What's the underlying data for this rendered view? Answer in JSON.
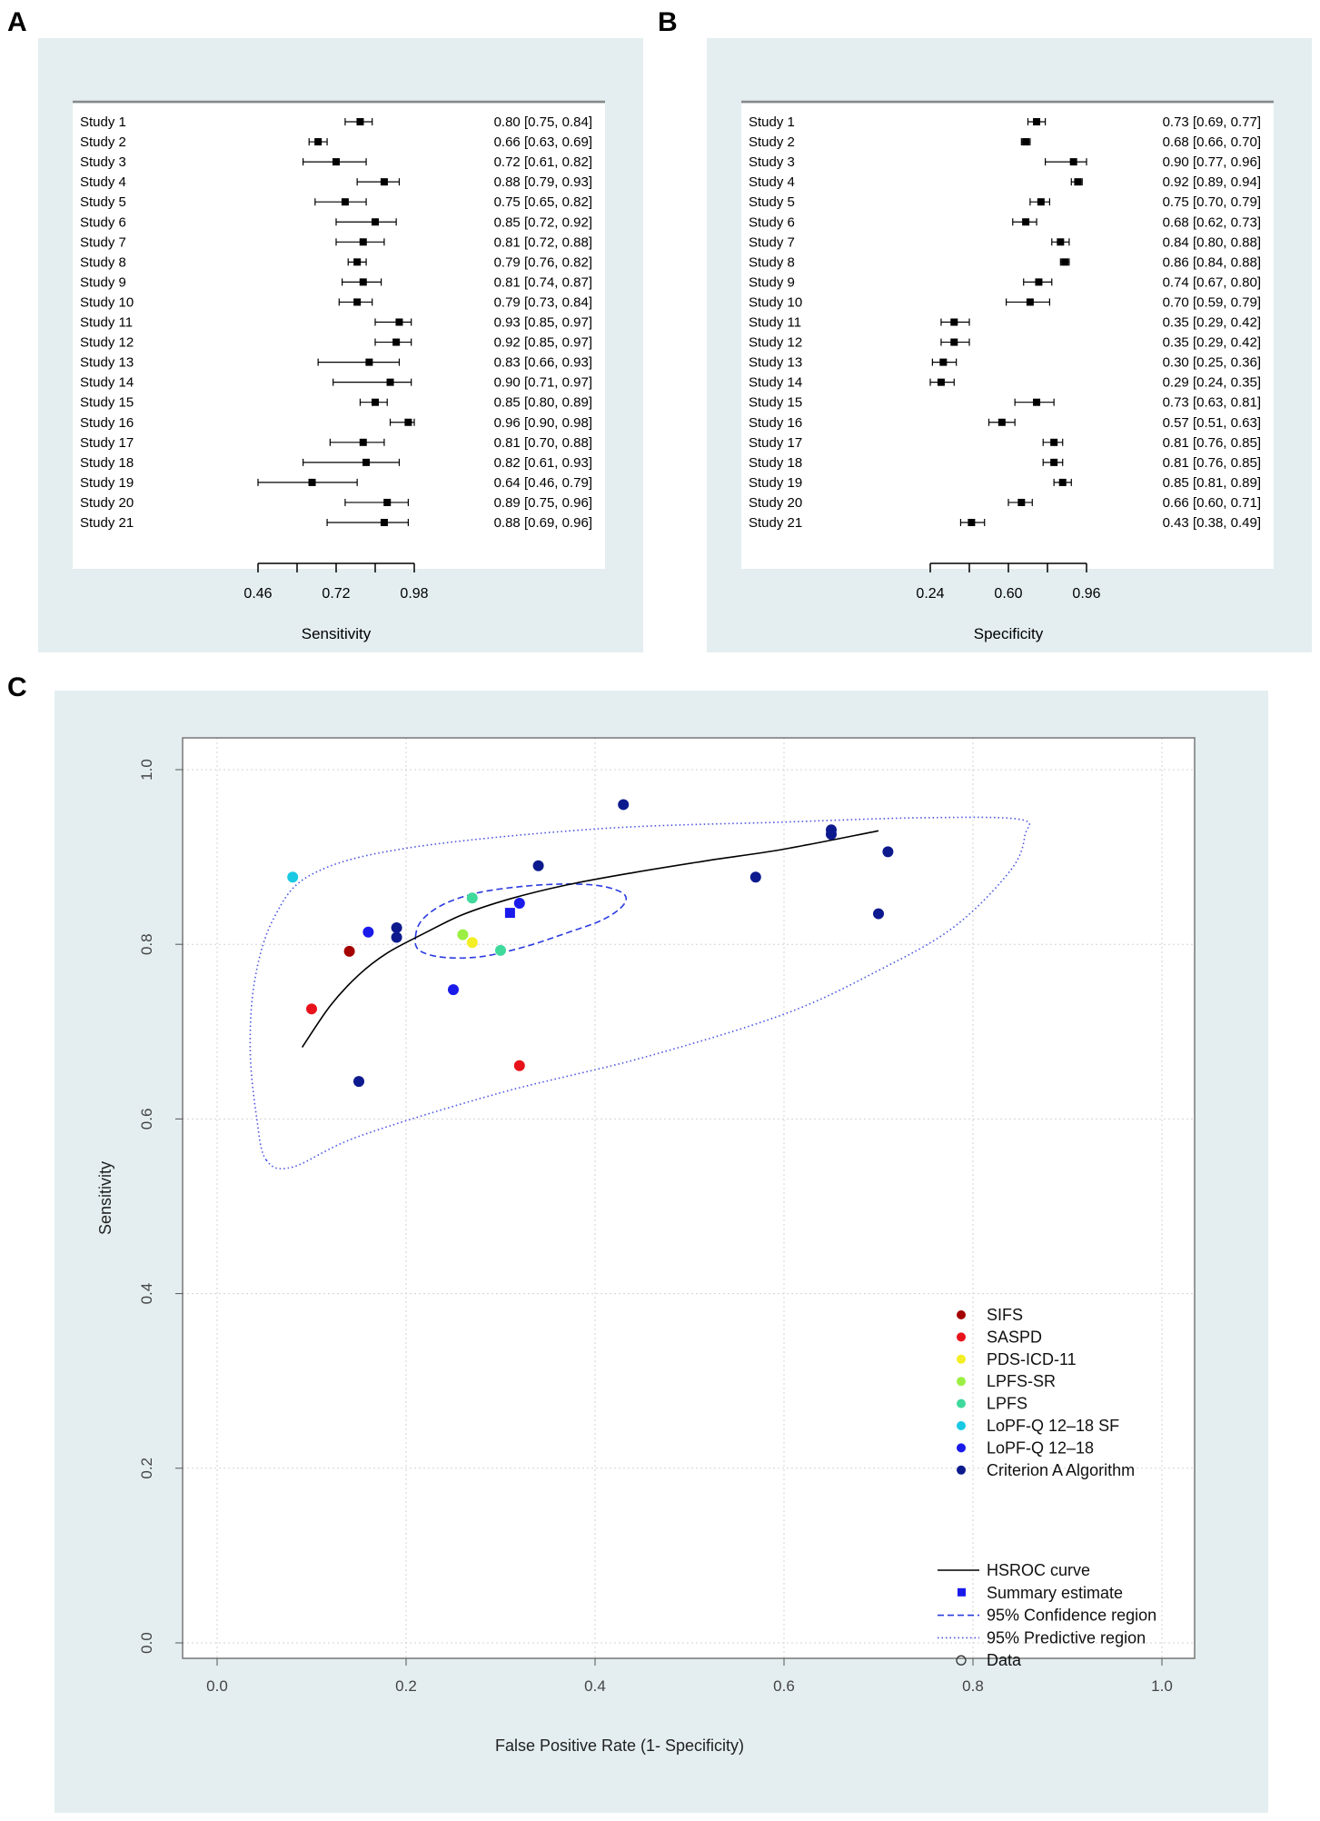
{
  "panels": {
    "a_label": "A",
    "b_label": "B",
    "c_label": "C"
  },
  "chart_data": [
    {
      "type": "forest",
      "xlabel": "Sensitivity",
      "ticks": [
        0.46,
        0.72,
        0.98
      ],
      "minor_ticks": [
        0.46,
        0.59,
        0.72,
        0.85,
        0.98
      ],
      "xlim": [
        0.46,
        0.98
      ],
      "studies": [
        {
          "label": "Study 1",
          "est": 0.8,
          "lo": 0.75,
          "hi": 0.84,
          "text": "0.80 [0.75, 0.84]"
        },
        {
          "label": "Study 2",
          "est": 0.66,
          "lo": 0.63,
          "hi": 0.69,
          "text": "0.66 [0.63, 0.69]"
        },
        {
          "label": "Study 3",
          "est": 0.72,
          "lo": 0.61,
          "hi": 0.82,
          "text": "0.72 [0.61, 0.82]"
        },
        {
          "label": "Study 4",
          "est": 0.88,
          "lo": 0.79,
          "hi": 0.93,
          "text": "0.88 [0.79, 0.93]"
        },
        {
          "label": "Study 5",
          "est": 0.75,
          "lo": 0.65,
          "hi": 0.82,
          "text": "0.75 [0.65, 0.82]"
        },
        {
          "label": "Study 6",
          "est": 0.85,
          "lo": 0.72,
          "hi": 0.92,
          "text": "0.85 [0.72, 0.92]"
        },
        {
          "label": "Study 7",
          "est": 0.81,
          "lo": 0.72,
          "hi": 0.88,
          "text": "0.81 [0.72, 0.88]"
        },
        {
          "label": "Study 8",
          "est": 0.79,
          "lo": 0.76,
          "hi": 0.82,
          "text": "0.79 [0.76, 0.82]"
        },
        {
          "label": "Study 9",
          "est": 0.81,
          "lo": 0.74,
          "hi": 0.87,
          "text": "0.81 [0.74, 0.87]"
        },
        {
          "label": "Study 10",
          "est": 0.79,
          "lo": 0.73,
          "hi": 0.84,
          "text": "0.79 [0.73, 0.84]"
        },
        {
          "label": "Study 11",
          "est": 0.93,
          "lo": 0.85,
          "hi": 0.97,
          "text": "0.93 [0.85, 0.97]"
        },
        {
          "label": "Study 12",
          "est": 0.92,
          "lo": 0.85,
          "hi": 0.97,
          "text": "0.92 [0.85, 0.97]"
        },
        {
          "label": "Study 13",
          "est": 0.83,
          "lo": 0.66,
          "hi": 0.93,
          "text": "0.83 [0.66, 0.93]"
        },
        {
          "label": "Study 14",
          "est": 0.9,
          "lo": 0.71,
          "hi": 0.97,
          "text": "0.90 [0.71, 0.97]"
        },
        {
          "label": "Study 15",
          "est": 0.85,
          "lo": 0.8,
          "hi": 0.89,
          "text": "0.85 [0.80, 0.89]"
        },
        {
          "label": "Study 16",
          "est": 0.96,
          "lo": 0.9,
          "hi": 0.98,
          "text": "0.96 [0.90, 0.98]"
        },
        {
          "label": "Study 17",
          "est": 0.81,
          "lo": 0.7,
          "hi": 0.88,
          "text": "0.81 [0.70, 0.88]"
        },
        {
          "label": "Study 18",
          "est": 0.82,
          "lo": 0.61,
          "hi": 0.93,
          "text": "0.82 [0.61, 0.93]"
        },
        {
          "label": "Study 19",
          "est": 0.64,
          "lo": 0.46,
          "hi": 0.79,
          "text": "0.64 [0.46, 0.79]"
        },
        {
          "label": "Study 20",
          "est": 0.89,
          "lo": 0.75,
          "hi": 0.96,
          "text": "0.89 [0.75, 0.96]"
        },
        {
          "label": "Study 21",
          "est": 0.88,
          "lo": 0.69,
          "hi": 0.96,
          "text": "0.88 [0.69, 0.96]"
        }
      ]
    },
    {
      "type": "forest",
      "xlabel": "Specificity",
      "ticks": [
        0.24,
        0.6,
        0.96
      ],
      "tick_labels": [
        "0.24",
        "0.60",
        "0.96"
      ],
      "minor_ticks": [
        0.24,
        0.42,
        0.6,
        0.78,
        0.96
      ],
      "xlim": [
        0.24,
        0.96
      ],
      "studies": [
        {
          "label": "Study 1",
          "est": 0.73,
          "lo": 0.69,
          "hi": 0.77,
          "text": "0.73 [0.69, 0.77]"
        },
        {
          "label": "Study 2",
          "est": 0.68,
          "lo": 0.66,
          "hi": 0.7,
          "text": "0.68 [0.66, 0.70]"
        },
        {
          "label": "Study 3",
          "est": 0.9,
          "lo": 0.77,
          "hi": 0.96,
          "text": "0.90 [0.77, 0.96]"
        },
        {
          "label": "Study 4",
          "est": 0.92,
          "lo": 0.89,
          "hi": 0.94,
          "text": "0.92 [0.89, 0.94]"
        },
        {
          "label": "Study 5",
          "est": 0.75,
          "lo": 0.7,
          "hi": 0.79,
          "text": "0.75 [0.70, 0.79]"
        },
        {
          "label": "Study 6",
          "est": 0.68,
          "lo": 0.62,
          "hi": 0.73,
          "text": "0.68 [0.62, 0.73]"
        },
        {
          "label": "Study 7",
          "est": 0.84,
          "lo": 0.8,
          "hi": 0.88,
          "text": "0.84 [0.80, 0.88]"
        },
        {
          "label": "Study 8",
          "est": 0.86,
          "lo": 0.84,
          "hi": 0.88,
          "text": "0.86 [0.84, 0.88]"
        },
        {
          "label": "Study 9",
          "est": 0.74,
          "lo": 0.67,
          "hi": 0.8,
          "text": "0.74 [0.67, 0.80]"
        },
        {
          "label": "Study 10",
          "est": 0.7,
          "lo": 0.59,
          "hi": 0.79,
          "text": "0.70 [0.59, 0.79]"
        },
        {
          "label": "Study 11",
          "est": 0.35,
          "lo": 0.29,
          "hi": 0.42,
          "text": "0.35 [0.29, 0.42]"
        },
        {
          "label": "Study 12",
          "est": 0.35,
          "lo": 0.29,
          "hi": 0.42,
          "text": "0.35 [0.29, 0.42]"
        },
        {
          "label": "Study 13",
          "est": 0.3,
          "lo": 0.25,
          "hi": 0.36,
          "text": "0.30 [0.25, 0.36]"
        },
        {
          "label": "Study 14",
          "est": 0.29,
          "lo": 0.24,
          "hi": 0.35,
          "text": "0.29 [0.24, 0.35]"
        },
        {
          "label": "Study 15",
          "est": 0.73,
          "lo": 0.63,
          "hi": 0.81,
          "text": "0.73 [0.63, 0.81]"
        },
        {
          "label": "Study 16",
          "est": 0.57,
          "lo": 0.51,
          "hi": 0.63,
          "text": "0.57 [0.51, 0.63]"
        },
        {
          "label": "Study 17",
          "est": 0.81,
          "lo": 0.76,
          "hi": 0.85,
          "text": "0.81 [0.76, 0.85]"
        },
        {
          "label": "Study 18",
          "est": 0.81,
          "lo": 0.76,
          "hi": 0.85,
          "text": "0.81 [0.76, 0.85]"
        },
        {
          "label": "Study 19",
          "est": 0.85,
          "lo": 0.81,
          "hi": 0.89,
          "text": "0.85 [0.81, 0.89]"
        },
        {
          "label": "Study 20",
          "est": 0.66,
          "lo": 0.6,
          "hi": 0.71,
          "text": "0.66 [0.60, 0.71]"
        },
        {
          "label": "Study 21",
          "est": 0.43,
          "lo": 0.38,
          "hi": 0.49,
          "text": "0.43 [0.38, 0.49]"
        }
      ]
    },
    {
      "type": "scatter",
      "title": "",
      "xlabel": "False Positive Rate (1- Specificity)",
      "ylabel": "Sensitivity",
      "xlim": [
        0.0,
        1.0
      ],
      "ylim": [
        0.0,
        1.0
      ],
      "xticks": [
        "0.0",
        "0.2",
        "0.4",
        "0.6",
        "0.8",
        "1.0"
      ],
      "yticks": [
        "0.0",
        "0.2",
        "0.4",
        "0.6",
        "0.8",
        "1.0"
      ],
      "grid": true,
      "legend_position": "bottom-right",
      "groups": [
        {
          "name": "SIFS",
          "color": "#a40000"
        },
        {
          "name": "SASPD",
          "color": "#e8121b"
        },
        {
          "name": "PDS-ICD-11",
          "color": "#f4ee24"
        },
        {
          "name": "LPFS-SR",
          "color": "#9bef43"
        },
        {
          "name": "LPFS",
          "color": "#3fd99c"
        },
        {
          "name": "LoPF-Q 12–18 SF",
          "color": "#19c9e3"
        },
        {
          "name": "LoPF-Q 12–18",
          "color": "#1a1aeb"
        },
        {
          "name": "Criterion A Algorithm",
          "color": "#0d1a8e"
        }
      ],
      "points": [
        {
          "x": 0.14,
          "y": 0.792,
          "group": 0
        },
        {
          "x": 0.1,
          "y": 0.726,
          "group": 1
        },
        {
          "x": 0.32,
          "y": 0.661,
          "group": 1
        },
        {
          "x": 0.27,
          "y": 0.802,
          "group": 2
        },
        {
          "x": 0.26,
          "y": 0.811,
          "group": 3
        },
        {
          "x": 0.27,
          "y": 0.853,
          "group": 4
        },
        {
          "x": 0.3,
          "y": 0.793,
          "group": 4
        },
        {
          "x": 0.08,
          "y": 0.877,
          "group": 5
        },
        {
          "x": 0.16,
          "y": 0.814,
          "group": 6
        },
        {
          "x": 0.25,
          "y": 0.748,
          "group": 6
        },
        {
          "x": 0.32,
          "y": 0.847,
          "group": 6
        },
        {
          "x": 0.19,
          "y": 0.819,
          "group": 7
        },
        {
          "x": 0.19,
          "y": 0.808,
          "group": 7
        },
        {
          "x": 0.15,
          "y": 0.643,
          "group": 7
        },
        {
          "x": 0.34,
          "y": 0.89,
          "group": 7
        },
        {
          "x": 0.43,
          "y": 0.96,
          "group": 7
        },
        {
          "x": 0.57,
          "y": 0.877,
          "group": 7
        },
        {
          "x": 0.65,
          "y": 0.931,
          "group": 7
        },
        {
          "x": 0.65,
          "y": 0.926,
          "group": 7
        },
        {
          "x": 0.71,
          "y": 0.906,
          "group": 7
        },
        {
          "x": 0.7,
          "y": 0.835,
          "group": 7
        }
      ],
      "summary_estimate": {
        "x": 0.31,
        "y": 0.836
      },
      "hsroc_curve": [
        [
          0.09,
          0.682
        ],
        [
          0.12,
          0.73
        ],
        [
          0.15,
          0.765
        ],
        [
          0.18,
          0.79
        ],
        [
          0.22,
          0.813
        ],
        [
          0.26,
          0.834
        ],
        [
          0.31,
          0.852
        ],
        [
          0.37,
          0.868
        ],
        [
          0.44,
          0.882
        ],
        [
          0.52,
          0.896
        ],
        [
          0.6,
          0.909
        ],
        [
          0.7,
          0.93
        ]
      ],
      "confidence_region": [
        [
          0.21,
          0.809
        ],
        [
          0.217,
          0.828
        ],
        [
          0.24,
          0.846
        ],
        [
          0.276,
          0.859
        ],
        [
          0.32,
          0.866
        ],
        [
          0.365,
          0.869
        ],
        [
          0.405,
          0.867
        ],
        [
          0.43,
          0.858
        ],
        [
          0.43,
          0.845
        ],
        [
          0.408,
          0.828
        ],
        [
          0.37,
          0.813
        ],
        [
          0.325,
          0.797
        ],
        [
          0.28,
          0.786
        ],
        [
          0.24,
          0.785
        ],
        [
          0.214,
          0.793
        ]
      ],
      "predictive_region": [
        [
          0.052,
          0.553
        ],
        [
          0.042,
          0.6
        ],
        [
          0.035,
          0.68
        ],
        [
          0.04,
          0.76
        ],
        [
          0.06,
          0.83
        ],
        [
          0.1,
          0.88
        ],
        [
          0.2,
          0.91
        ],
        [
          0.4,
          0.932
        ],
        [
          0.6,
          0.94
        ],
        [
          0.75,
          0.945
        ],
        [
          0.85,
          0.943
        ],
        [
          0.855,
          0.925
        ],
        [
          0.84,
          0.885
        ],
        [
          0.78,
          0.82
        ],
        [
          0.7,
          0.77
        ],
        [
          0.6,
          0.72
        ],
        [
          0.45,
          0.67
        ],
        [
          0.3,
          0.63
        ],
        [
          0.15,
          0.58
        ],
        [
          0.08,
          0.545
        ]
      ],
      "legend_lines": [
        {
          "label": "HSROC curve",
          "style": "solid-line"
        },
        {
          "label": "Summary estimate",
          "style": "blue-square"
        },
        {
          "label": "95% Confidence region",
          "style": "dashed-line"
        },
        {
          "label": "95% Predictive region",
          "style": "dotted-line"
        },
        {
          "label": "Data",
          "style": "open-circle"
        }
      ]
    }
  ]
}
